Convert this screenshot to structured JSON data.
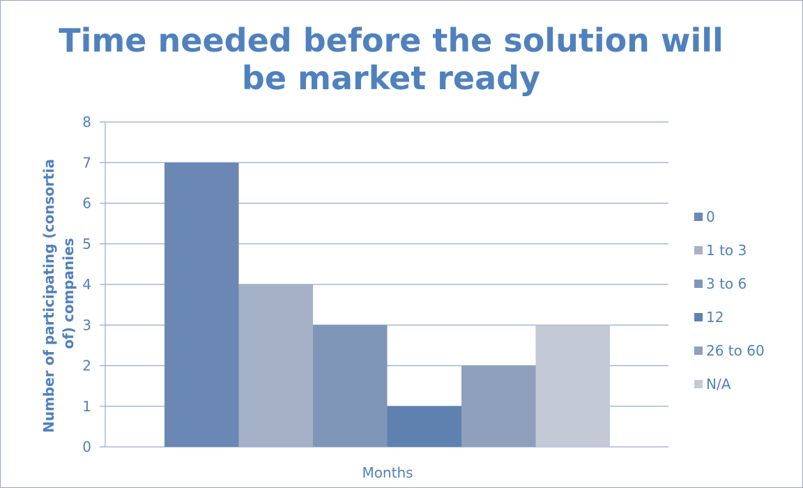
{
  "chart_data": {
    "type": "bar",
    "title": "Time needed before the solution will be market ready",
    "xlabel": "Months",
    "ylabel": [
      "Number of participating (consortia",
      "of) companies"
    ],
    "categories": [
      "0",
      "1 to 3",
      "3 to 6",
      "12",
      "26 to 60",
      "N/A"
    ],
    "values": [
      7,
      4,
      3,
      1,
      2,
      3
    ],
    "colors": [
      "#6b87b3",
      "#a5b1c6",
      "#8096b9",
      "#5e81b0",
      "#8ea0bc",
      "#c3c9d5"
    ],
    "ylim": [
      0,
      8
    ],
    "yticks": [
      "0",
      "1",
      "2",
      "3",
      "4",
      "5",
      "6",
      "7",
      "8"
    ],
    "grid": true,
    "legend": "right"
  }
}
